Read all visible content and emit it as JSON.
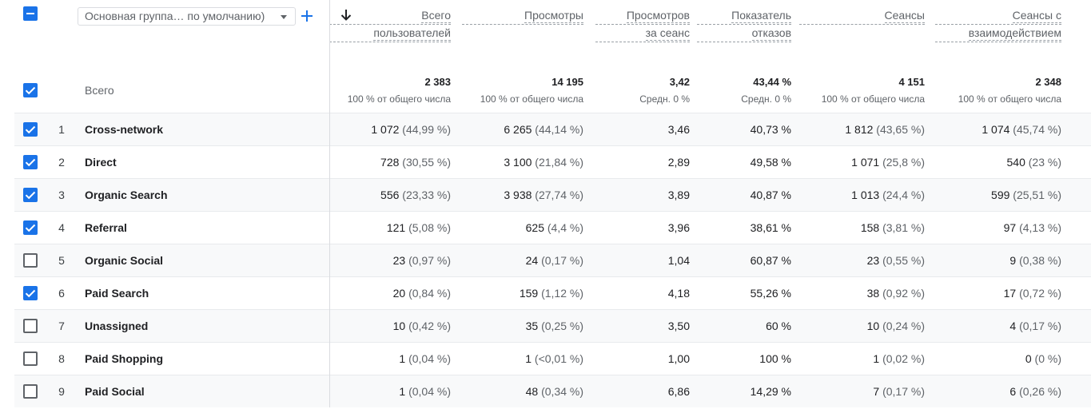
{
  "dimension_select": {
    "value": "Основная группа… по умолчанию)"
  },
  "columns": [
    {
      "lines": [
        "Всего",
        "пользователей"
      ]
    },
    {
      "lines": [
        "Просмотры"
      ]
    },
    {
      "lines": [
        "Просмотров",
        "за сеанс"
      ]
    },
    {
      "lines": [
        "Показатель",
        "отказов"
      ]
    },
    {
      "lines": [
        "Сеансы"
      ]
    },
    {
      "lines": [
        "Сеансы с",
        "взаимодействием"
      ]
    }
  ],
  "totals": {
    "label": "Всего",
    "values": [
      {
        "value": "2 383",
        "sub": "100 % от общего числа"
      },
      {
        "value": "14 195",
        "sub": "100 % от общего числа"
      },
      {
        "value": "3,42",
        "sub": "Средн. 0 %"
      },
      {
        "value": "43,44 %",
        "sub": "Средн. 0 %"
      },
      {
        "value": "4 151",
        "sub": "100 % от общего числа"
      },
      {
        "value": "2 348",
        "sub": "100 % от общего числа"
      }
    ]
  },
  "rows": [
    {
      "num": "1",
      "name": "Cross-network",
      "checked": true,
      "m": [
        [
          "1 072",
          "(44,99 %)"
        ],
        [
          "6 265",
          "(44,14 %)"
        ],
        [
          "3,46",
          ""
        ],
        [
          "40,73 %",
          ""
        ],
        [
          "1 812",
          "(43,65 %)"
        ],
        [
          "1 074",
          "(45,74 %)"
        ]
      ]
    },
    {
      "num": "2",
      "name": "Direct",
      "checked": true,
      "m": [
        [
          "728",
          "(30,55 %)"
        ],
        [
          "3 100",
          "(21,84 %)"
        ],
        [
          "2,89",
          ""
        ],
        [
          "49,58 %",
          ""
        ],
        [
          "1 071",
          "(25,8 %)"
        ],
        [
          "540",
          "(23 %)"
        ]
      ]
    },
    {
      "num": "3",
      "name": "Organic Search",
      "checked": true,
      "m": [
        [
          "556",
          "(23,33 %)"
        ],
        [
          "3 938",
          "(27,74 %)"
        ],
        [
          "3,89",
          ""
        ],
        [
          "40,87 %",
          ""
        ],
        [
          "1 013",
          "(24,4 %)"
        ],
        [
          "599",
          "(25,51 %)"
        ]
      ]
    },
    {
      "num": "4",
      "name": "Referral",
      "checked": true,
      "m": [
        [
          "121",
          "(5,08 %)"
        ],
        [
          "625",
          "(4,4 %)"
        ],
        [
          "3,96",
          ""
        ],
        [
          "38,61 %",
          ""
        ],
        [
          "158",
          "(3,81 %)"
        ],
        [
          "97",
          "(4,13 %)"
        ]
      ]
    },
    {
      "num": "5",
      "name": "Organic Social",
      "checked": false,
      "m": [
        [
          "23",
          "(0,97 %)"
        ],
        [
          "24",
          "(0,17 %)"
        ],
        [
          "1,04",
          ""
        ],
        [
          "60,87 %",
          ""
        ],
        [
          "23",
          "(0,55 %)"
        ],
        [
          "9",
          "(0,38 %)"
        ]
      ]
    },
    {
      "num": "6",
      "name": "Paid Search",
      "checked": true,
      "m": [
        [
          "20",
          "(0,84 %)"
        ],
        [
          "159",
          "(1,12 %)"
        ],
        [
          "4,18",
          ""
        ],
        [
          "55,26 %",
          ""
        ],
        [
          "38",
          "(0,92 %)"
        ],
        [
          "17",
          "(0,72 %)"
        ]
      ]
    },
    {
      "num": "7",
      "name": "Unassigned",
      "checked": false,
      "m": [
        [
          "10",
          "(0,42 %)"
        ],
        [
          "35",
          "(0,25 %)"
        ],
        [
          "3,50",
          ""
        ],
        [
          "60 %",
          ""
        ],
        [
          "10",
          "(0,24 %)"
        ],
        [
          "4",
          "(0,17 %)"
        ]
      ]
    },
    {
      "num": "8",
      "name": "Paid Shopping",
      "checked": false,
      "m": [
        [
          "1",
          "(0,04 %)"
        ],
        [
          "1",
          "(<0,01 %)"
        ],
        [
          "1,00",
          ""
        ],
        [
          "100 %",
          ""
        ],
        [
          "1",
          "(0,02 %)"
        ],
        [
          "0",
          "(0 %)"
        ]
      ]
    },
    {
      "num": "9",
      "name": "Paid Social",
      "checked": false,
      "m": [
        [
          "1",
          "(0,04 %)"
        ],
        [
          "48",
          "(0,34 %)"
        ],
        [
          "6,86",
          ""
        ],
        [
          "14,29 %",
          ""
        ],
        [
          "7",
          "(0,17 %)"
        ],
        [
          "6",
          "(0,26 %)"
        ]
      ]
    }
  ],
  "colors": {
    "accent": "#1a73e8",
    "checkbox_off": "#5f6368"
  }
}
